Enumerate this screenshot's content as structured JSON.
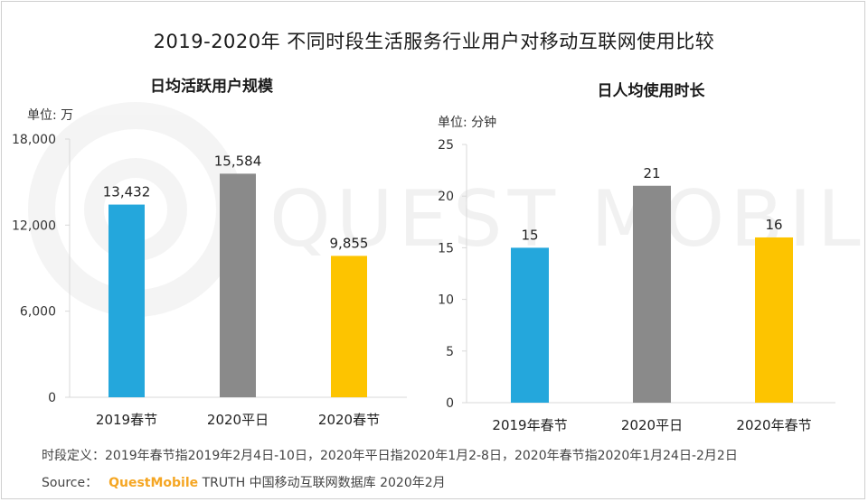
{
  "title": "2019-2020年 不同时段生活服务行业用户对移动互联网使用比较",
  "watermark": "QUEST MOBILE",
  "colors": {
    "bar_2019": "#24a7dc",
    "bar_2020_normal": "#8a8a8a",
    "bar_2020_spring": "#fdc400",
    "brand": "#f5a623"
  },
  "chart_data": [
    {
      "type": "bar",
      "title": "日均活跃用户规模",
      "unit": "单位: 万",
      "categories": [
        "2019春节",
        "2020平日",
        "2020春节"
      ],
      "values": [
        13432,
        15584,
        9855
      ],
      "value_labels": [
        "13,432",
        "15,584",
        "9,855"
      ],
      "yticks": [
        0,
        6000,
        12000,
        18000
      ],
      "ytick_labels": [
        "0",
        "6,000",
        "12,000",
        "18,000"
      ],
      "ylim": [
        0,
        18000
      ]
    },
    {
      "type": "bar",
      "title": "日人均使用时长",
      "unit": "单位: 分钟",
      "categories": [
        "2019年春节",
        "2020平日",
        "2020年春节"
      ],
      "values": [
        15,
        21,
        16
      ],
      "value_labels": [
        "15",
        "21",
        "16"
      ],
      "yticks": [
        0,
        5,
        10,
        15,
        20,
        25
      ],
      "ytick_labels": [
        "0",
        "5",
        "10",
        "15",
        "20",
        "25"
      ],
      "ylim": [
        0,
        25
      ]
    }
  ],
  "footer": {
    "definition": "时段定义：2019年春节指2019年2月4日-10日，2020年平日指2020年1月2-8日，2020年春节指2020年1月24日-2月2日",
    "source_label": "Source：",
    "source_brand": "QuestMobile",
    "source_text": "TRUTH 中国移动互联网数据库 2020年2月"
  }
}
